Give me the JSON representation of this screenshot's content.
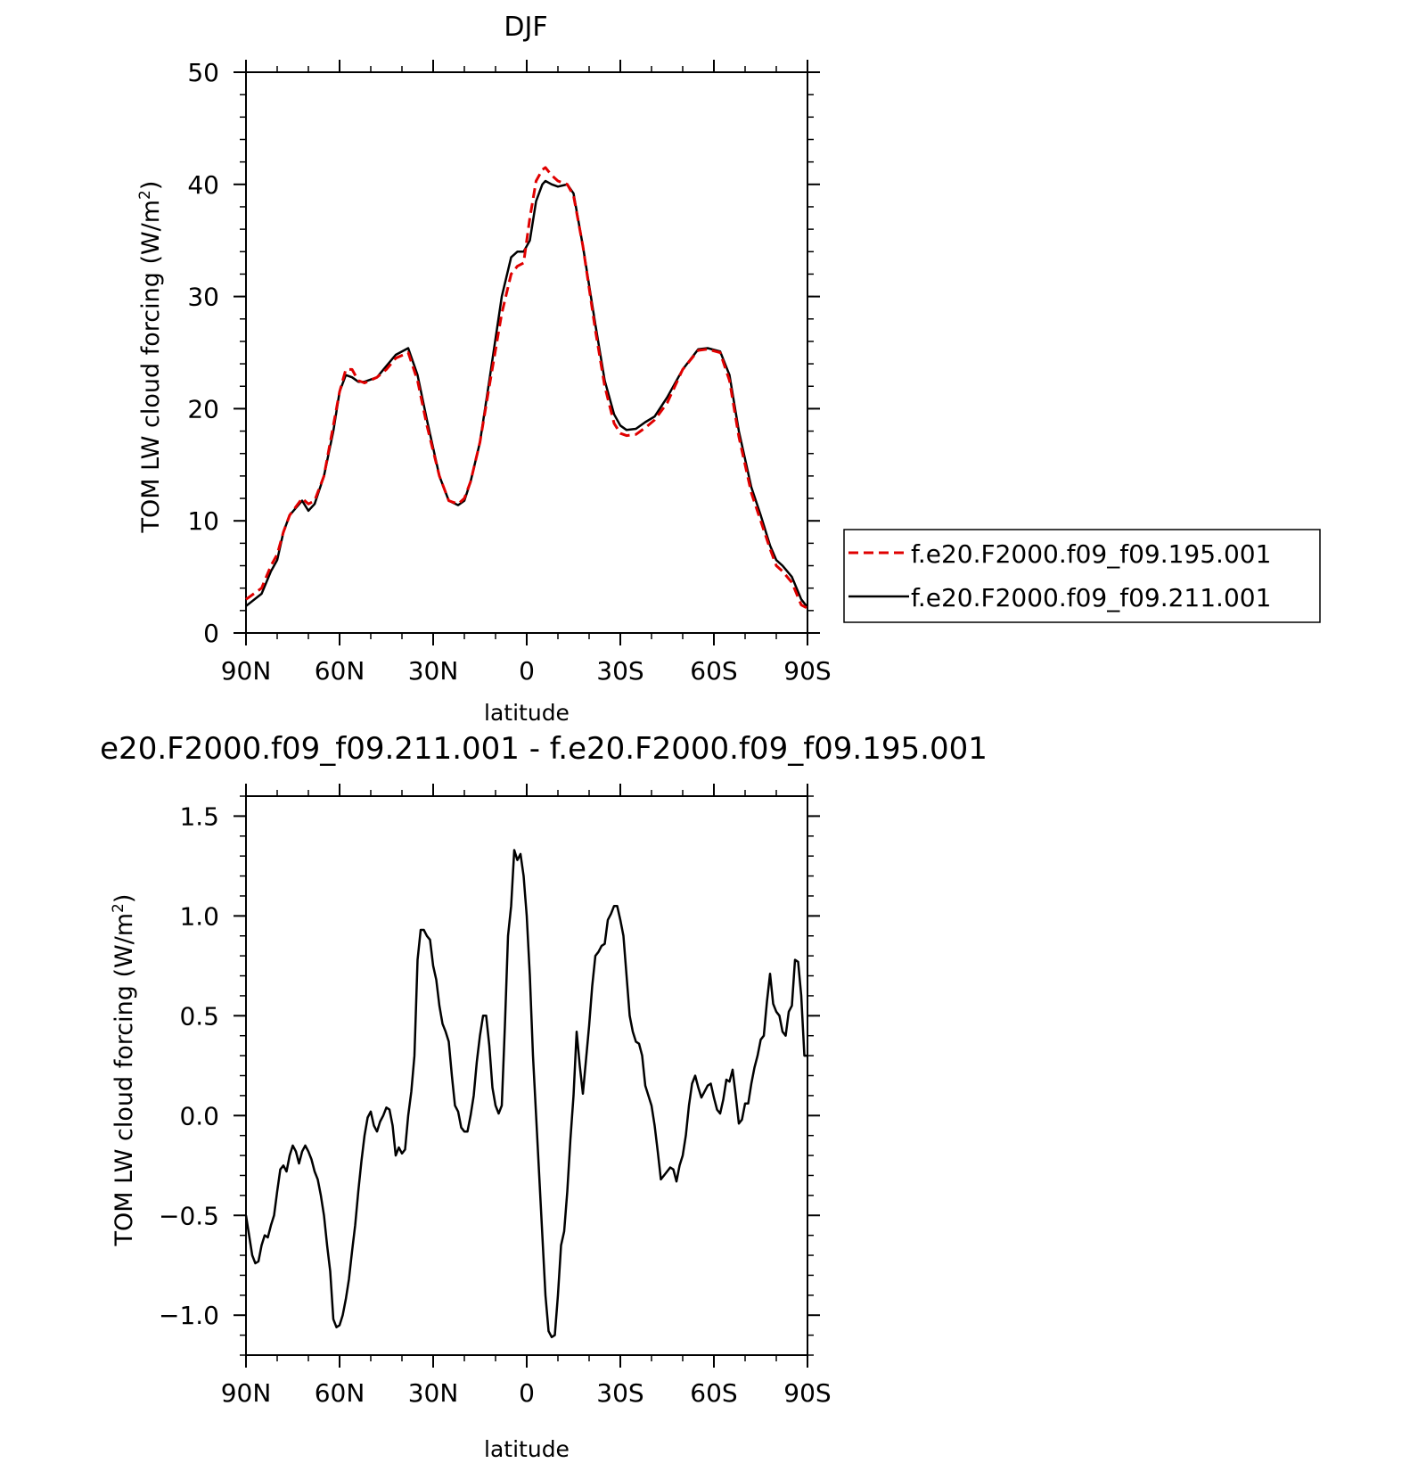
{
  "chart_data": [
    {
      "type": "line",
      "title": "DJF",
      "xlabel": "latitude",
      "ylabel": "TOM LW cloud forcing (W/m",
      "ylabel_sup": "2",
      "ylabel_close": ")",
      "xlim": [
        -90,
        90
      ],
      "ylim": [
        0,
        50
      ],
      "x_ticks": [
        -90,
        -60,
        -30,
        0,
        30,
        60,
        90
      ],
      "x_tick_labels": [
        "90N",
        "60N",
        "30N",
        "0",
        "30S",
        "60S",
        "90S"
      ],
      "y_ticks": [
        0,
        10,
        20,
        30,
        40,
        50
      ],
      "y_tick_labels": [
        "0",
        "10",
        "20",
        "30",
        "40",
        "50"
      ],
      "legend_position": "right",
      "series": [
        {
          "name": "f.e20.F2000.f09_f09.195.001",
          "color": "#e00000",
          "dash": true,
          "x": [
            -90,
            -85,
            -82,
            -80,
            -78,
            -76,
            -72,
            -70,
            -68,
            -65,
            -62,
            -60,
            -58,
            -56,
            -54,
            -52,
            -48,
            -45,
            -42,
            -38,
            -35,
            -32,
            -28,
            -25,
            -22,
            -20,
            -18,
            -15,
            -12,
            -8,
            -5,
            -3,
            -1,
            1,
            3,
            5,
            6,
            8,
            10,
            13,
            15,
            18,
            22,
            25,
            28,
            30,
            32,
            35,
            38,
            41,
            45,
            50,
            55,
            58,
            62,
            65,
            68,
            72,
            75,
            78,
            80,
            82,
            85,
            88,
            90
          ],
          "y": [
            3.0,
            4.0,
            6.0,
            7.0,
            9.0,
            10.5,
            12.0,
            11.5,
            11.8,
            14.0,
            18.5,
            21.5,
            23.5,
            23.5,
            22.5,
            22.3,
            22.8,
            23.5,
            24.5,
            25.0,
            22.5,
            18.5,
            14.0,
            11.8,
            11.5,
            12.0,
            13.5,
            17.0,
            22.0,
            28.5,
            32.0,
            32.7,
            33.0,
            37.0,
            40.3,
            41.3,
            41.5,
            40.8,
            40.3,
            40.0,
            39.0,
            34.5,
            27.0,
            22.0,
            18.7,
            17.8,
            17.6,
            17.7,
            18.3,
            19.0,
            20.5,
            23.5,
            25.2,
            25.3,
            25.0,
            22.5,
            17.5,
            12.5,
            10.0,
            7.5,
            6.0,
            5.5,
            4.5,
            2.5,
            2.2
          ]
        },
        {
          "name": "f.e20.F2000.f09_f09.211.001",
          "color": "#000000",
          "dash": false,
          "x": [
            -90,
            -85,
            -82,
            -80,
            -78,
            -76,
            -72,
            -70,
            -68,
            -65,
            -62,
            -60,
            -58,
            -56,
            -54,
            -52,
            -48,
            -45,
            -42,
            -38,
            -35,
            -32,
            -28,
            -25,
            -22,
            -20,
            -18,
            -15,
            -12,
            -8,
            -5,
            -3,
            -1,
            1,
            3,
            5,
            6,
            8,
            10,
            13,
            15,
            18,
            22,
            25,
            28,
            30,
            32,
            35,
            38,
            41,
            45,
            50,
            55,
            58,
            62,
            65,
            68,
            72,
            75,
            78,
            80,
            82,
            85,
            88,
            90
          ],
          "y": [
            2.4,
            3.5,
            5.5,
            6.5,
            9.0,
            10.5,
            11.8,
            10.9,
            11.5,
            14.0,
            18.0,
            21.5,
            23.0,
            22.8,
            22.4,
            22.4,
            22.8,
            23.8,
            24.8,
            25.4,
            23.0,
            19.0,
            14.0,
            11.8,
            11.4,
            11.8,
            13.5,
            17.0,
            22.5,
            30.0,
            33.5,
            34.0,
            34.0,
            35.0,
            38.5,
            40.0,
            40.3,
            40.0,
            39.8,
            40.0,
            39.2,
            34.5,
            27.5,
            22.5,
            19.5,
            18.5,
            18.1,
            18.2,
            18.8,
            19.3,
            21.0,
            23.5,
            25.3,
            25.4,
            25.1,
            23.0,
            18.0,
            13.0,
            10.5,
            7.8,
            6.5,
            6.0,
            5.0,
            3.0,
            2.3
          ]
        }
      ]
    },
    {
      "type": "line",
      "title": "e20.F2000.f09_f09.211.001 - f.e20.F2000.f09_f09.195.001",
      "xlabel": "latitude",
      "ylabel": "TOM LW cloud forcing (W/m",
      "ylabel_sup": "2",
      "ylabel_close": ")",
      "xlim": [
        -90,
        90
      ],
      "ylim": [
        -1.2,
        1.6
      ],
      "x_ticks": [
        -90,
        -60,
        -30,
        0,
        30,
        60,
        90
      ],
      "x_tick_labels": [
        "90N",
        "60N",
        "30N",
        "0",
        "30S",
        "60S",
        "90S"
      ],
      "y_ticks": [
        -1.0,
        -0.5,
        0.0,
        0.5,
        1.0,
        1.5
      ],
      "y_tick_labels": [
        "−1.0",
        "−0.5",
        "0.0",
        "0.5",
        "1.0",
        "1.5"
      ],
      "series": [
        {
          "name": "",
          "color": "#000000",
          "dash": false,
          "x": [
            -90,
            -89,
            -88,
            -87,
            -86,
            -85,
            -84,
            -83,
            -82,
            -81,
            -80,
            -79,
            -78,
            -77,
            -76,
            -75,
            -74,
            -73,
            -72,
            -71,
            -70,
            -69,
            -68,
            -67,
            -66,
            -65,
            -64,
            -63,
            -62,
            -61,
            -60,
            -59,
            -58,
            -57,
            -56,
            -55,
            -54,
            -53,
            -52,
            -51,
            -50,
            -49,
            -48,
            -47,
            -46,
            -45,
            -44,
            -43,
            -42,
            -41,
            -40,
            -39,
            -38,
            -37,
            -36,
            -35,
            -34,
            -33,
            -32,
            -31,
            -30,
            -29,
            -28,
            -27,
            -26,
            -25,
            -24,
            -23,
            -22,
            -21,
            -20,
            -19,
            -18,
            -17,
            -16,
            -15,
            -14,
            -13,
            -12,
            -11,
            -10,
            -9,
            -8,
            -7,
            -6,
            -5,
            -4,
            -3,
            -2,
            -1,
            0,
            1,
            2,
            3,
            4,
            5,
            6,
            7,
            8,
            9,
            10,
            11,
            12,
            13,
            14,
            15,
            16,
            17,
            18,
            19,
            20,
            21,
            22,
            23,
            24,
            25,
            26,
            27,
            28,
            29,
            30,
            31,
            32,
            33,
            34,
            35,
            36,
            37,
            38,
            39,
            40,
            41,
            42,
            43,
            44,
            45,
            46,
            47,
            48,
            49,
            50,
            51,
            52,
            53,
            54,
            55,
            56,
            57,
            58,
            59,
            60,
            61,
            62,
            63,
            64,
            65,
            66,
            67,
            68,
            69,
            70,
            71,
            72,
            73,
            74,
            75,
            76,
            77,
            78,
            79,
            80,
            81,
            82,
            83,
            84,
            85,
            86,
            87,
            88,
            89,
            90
          ],
          "y": [
            -0.5,
            -0.6,
            -0.7,
            -0.74,
            -0.73,
            -0.65,
            -0.6,
            -0.61,
            -0.55,
            -0.5,
            -0.38,
            -0.27,
            -0.25,
            -0.28,
            -0.2,
            -0.15,
            -0.18,
            -0.24,
            -0.18,
            -0.15,
            -0.18,
            -0.22,
            -0.28,
            -0.32,
            -0.4,
            -0.5,
            -0.65,
            -0.78,
            -1.02,
            -1.06,
            -1.05,
            -1.0,
            -0.92,
            -0.82,
            -0.68,
            -0.55,
            -0.38,
            -0.23,
            -0.1,
            -0.01,
            0.02,
            -0.05,
            -0.08,
            -0.03,
            0.0,
            0.04,
            0.03,
            -0.05,
            -0.2,
            -0.16,
            -0.19,
            -0.17,
            0.0,
            0.12,
            0.3,
            0.78,
            0.93,
            0.93,
            0.9,
            0.88,
            0.75,
            0.68,
            0.55,
            0.46,
            0.42,
            0.37,
            0.2,
            0.05,
            0.02,
            -0.06,
            -0.08,
            -0.08,
            0.0,
            0.1,
            0.27,
            0.4,
            0.5,
            0.5,
            0.35,
            0.14,
            0.05,
            0.01,
            0.05,
            0.45,
            0.9,
            1.05,
            1.33,
            1.28,
            1.31,
            1.2,
            1.0,
            0.7,
            0.3,
            0.0,
            -0.3,
            -0.6,
            -0.9,
            -1.08,
            -1.11,
            -1.1,
            -0.9,
            -0.65,
            -0.58,
            -0.38,
            -0.12,
            0.1,
            0.42,
            0.25,
            0.11,
            0.28,
            0.45,
            0.65,
            0.8,
            0.82,
            0.85,
            0.86,
            0.98,
            1.01,
            1.05,
            1.05,
            0.98,
            0.9,
            0.7,
            0.5,
            0.42,
            0.37,
            0.36,
            0.3,
            0.15,
            0.1,
            0.05,
            -0.05,
            -0.18,
            -0.32,
            -0.3,
            -0.28,
            -0.26,
            -0.27,
            -0.33,
            -0.25,
            -0.2,
            -0.1,
            0.05,
            0.16,
            0.2,
            0.14,
            0.09,
            0.12,
            0.15,
            0.16,
            0.09,
            0.03,
            0.01,
            0.08,
            0.18,
            0.17,
            0.23,
            0.1,
            -0.04,
            -0.02,
            0.06,
            0.06,
            0.16,
            0.24,
            0.3,
            0.38,
            0.4,
            0.57,
            0.71,
            0.56,
            0.52,
            0.5,
            0.42,
            0.4,
            0.52,
            0.55,
            0.78,
            0.77,
            0.6,
            0.3,
            0.3
          ]
        }
      ]
    }
  ]
}
